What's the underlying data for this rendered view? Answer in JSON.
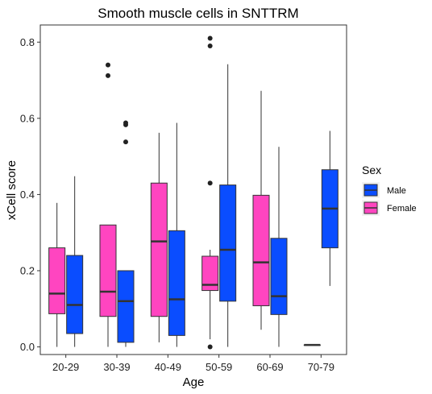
{
  "chart_data": {
    "type": "boxplot",
    "title": "Smooth muscle cells in SNTTRM",
    "xlabel": "Age",
    "ylabel": "xCell score",
    "categories": [
      "20-29",
      "30-39",
      "40-49",
      "50-59",
      "60-69",
      "70-79"
    ],
    "ylim": [
      -0.02,
      0.845
    ],
    "yticks": [
      0.0,
      0.2,
      0.4,
      0.6,
      0.8
    ],
    "ytick_labels": [
      "0.0",
      "0.2",
      "0.4",
      "0.6",
      "0.8"
    ],
    "grid": false,
    "legend": {
      "title": "Sex",
      "position": "right",
      "entries": [
        {
          "label": "Male",
          "color": "#0a4dff"
        },
        {
          "label": "Female",
          "color": "#ff45c0"
        }
      ]
    },
    "series": [
      {
        "name": "Female",
        "color": "#ff45c0",
        "boxes": [
          {
            "category": "20-29",
            "min": 0.0,
            "q1": 0.087,
            "median": 0.14,
            "q3": 0.26,
            "max": 0.378,
            "outliers": []
          },
          {
            "category": "30-39",
            "min": 0.0,
            "q1": 0.08,
            "median": 0.145,
            "q3": 0.32,
            "max": 0.32,
            "outliers": [
              0.74,
              0.712
            ]
          },
          {
            "category": "40-49",
            "min": 0.012,
            "q1": 0.08,
            "median": 0.277,
            "q3": 0.43,
            "max": 0.562,
            "outliers": []
          },
          {
            "category": "50-59",
            "min": 0.02,
            "q1": 0.148,
            "median": 0.163,
            "q3": 0.238,
            "max": 0.255,
            "outliers": [
              0.81,
              0.79,
              0.43,
              0.0
            ]
          },
          {
            "category": "60-69",
            "min": 0.045,
            "q1": 0.108,
            "median": 0.222,
            "q3": 0.398,
            "max": 0.672,
            "outliers": []
          },
          {
            "category": "70-79",
            "min": 0.005,
            "q1": 0.005,
            "median": 0.005,
            "q3": 0.005,
            "max": 0.005,
            "outliers": []
          }
        ]
      },
      {
        "name": "Male",
        "color": "#0a4dff",
        "boxes": [
          {
            "category": "20-29",
            "min": 0.0,
            "q1": 0.035,
            "median": 0.11,
            "q3": 0.24,
            "max": 0.448,
            "outliers": []
          },
          {
            "category": "30-39",
            "min": 0.0,
            "q1": 0.012,
            "median": 0.12,
            "q3": 0.2,
            "max": 0.2,
            "outliers": [
              0.588,
              0.583,
              0.538
            ]
          },
          {
            "category": "40-49",
            "min": 0.0,
            "q1": 0.03,
            "median": 0.125,
            "q3": 0.305,
            "max": 0.588,
            "outliers": []
          },
          {
            "category": "50-59",
            "min": 0.0,
            "q1": 0.12,
            "median": 0.255,
            "q3": 0.425,
            "max": 0.742,
            "outliers": []
          },
          {
            "category": "60-69",
            "min": 0.0,
            "q1": 0.085,
            "median": 0.133,
            "q3": 0.285,
            "max": 0.525,
            "outliers": []
          },
          {
            "category": "70-79",
            "min": 0.16,
            "q1": 0.26,
            "median": 0.363,
            "q3": 0.465,
            "max": 0.567,
            "outliers": []
          }
        ]
      }
    ]
  }
}
